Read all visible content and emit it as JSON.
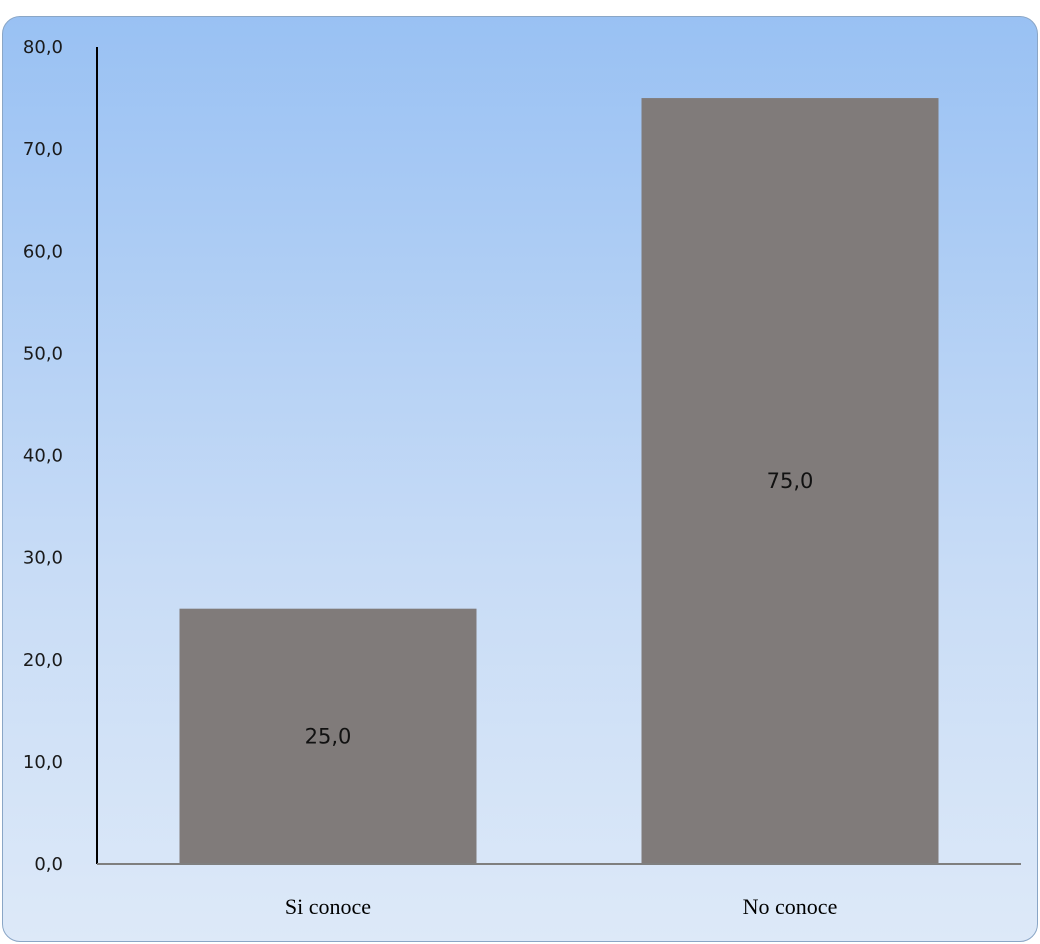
{
  "chart_data": {
    "type": "bar",
    "categories": [
      "Si conoce",
      "No conoce"
    ],
    "values": [
      25.0,
      75.0
    ],
    "value_labels": [
      "25,0",
      "75,0"
    ],
    "ylim": [
      0,
      80
    ],
    "y_ticks": [
      "0,0",
      "10,0",
      "20,0",
      "30,0",
      "40,0",
      "50,0",
      "60,0",
      "70,0",
      "80,0"
    ],
    "title": "",
    "xlabel": "",
    "ylabel": "",
    "grid": false,
    "legend": "none",
    "bar_color": "#807b7a",
    "background_top": "#99c1f3",
    "background_bottom": "#dde9f8"
  }
}
